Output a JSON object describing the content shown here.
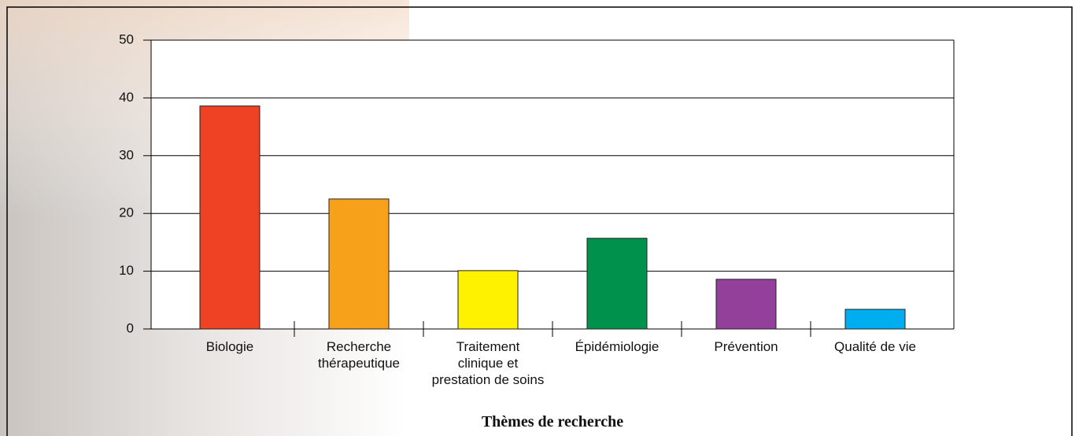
{
  "chart_data": {
    "type": "bar",
    "x_label": "Thèmes de recherche",
    "categories": [
      "Biologie",
      "Recherche\nthérapeutique",
      "Traitement\nclinique et\nprestation de soins",
      "Épidémiologie",
      "Prévention",
      "Qualité de vie"
    ],
    "values": [
      38.6,
      22.5,
      10.1,
      15.7,
      8.6,
      3.4
    ],
    "colors": [
      "#ef4123",
      "#f7a11b",
      "#fff200",
      "#00914c",
      "#93409a",
      "#00aeef"
    ],
    "ylim": [
      0,
      50
    ],
    "yticks": [
      0,
      10,
      20,
      30,
      40,
      50
    ],
    "grid": true
  }
}
